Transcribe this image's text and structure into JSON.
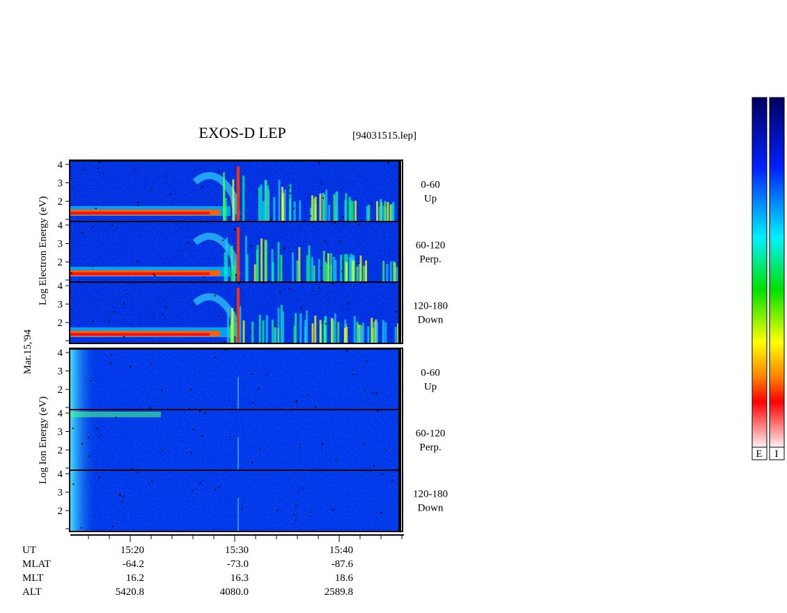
{
  "title": "EXOS-D LEP",
  "file": "[94031515.lep]",
  "date": "Mar.15,'94",
  "electron_label": "Log  Electron  Energy (eV)",
  "ion_label": "Log  Ion  Energy (eV)",
  "energy_ticks": [
    "4",
    "3",
    "2"
  ],
  "panels": [
    {
      "angle": "0-60",
      "dir": "Up"
    },
    {
      "angle": "60-120",
      "dir": "Perp."
    },
    {
      "angle": "120-180",
      "dir": "Down"
    },
    {
      "angle": "0-60",
      "dir": "Up"
    },
    {
      "angle": "60-120",
      "dir": "Perp."
    },
    {
      "angle": "120-180",
      "dir": "Down"
    }
  ],
  "time_table": {
    "rows": [
      [
        "UT",
        "15:20",
        "15:30",
        "15:40"
      ],
      [
        "MLAT",
        "-64.2",
        "-73.0",
        "-87.6"
      ],
      [
        "MLT",
        "16.2",
        "16.3",
        "18.6"
      ],
      [
        "ALT",
        "5420.8",
        "4080.0",
        "2589.8"
      ]
    ]
  },
  "colorbar_labels": [
    "E",
    "I"
  ]
}
